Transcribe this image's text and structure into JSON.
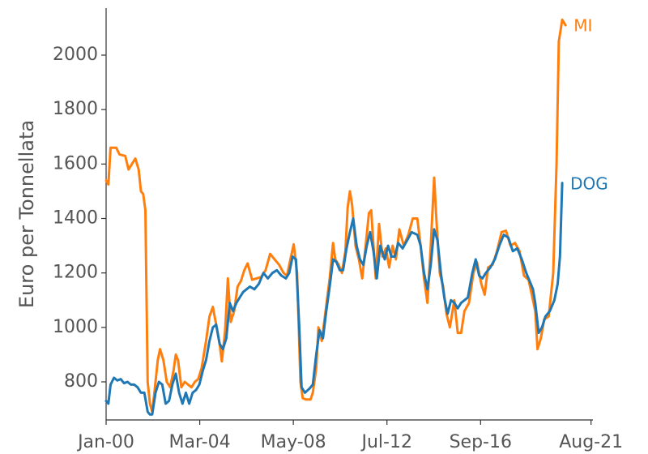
{
  "chart_data": {
    "type": "line",
    "ylabel": "Euro per Tonnellata",
    "xlabel": "",
    "title": "",
    "ylim": [
      670,
      2180
    ],
    "yticks": [
      800,
      1000,
      1200,
      1400,
      1600,
      1800,
      2000
    ],
    "xlim": [
      2000.0,
      2021.667
    ],
    "xticks": [
      {
        "label": "Jan-00",
        "x": 2000.0
      },
      {
        "label": "Mar-04",
        "x": 2004.167
      },
      {
        "label": "May-08",
        "x": 2008.333
      },
      {
        "label": "Jul-12",
        "x": 2012.5
      },
      {
        "label": "Sep-16",
        "x": 2016.667
      },
      {
        "label": "Aug-21",
        "x": 2021.583
      }
    ],
    "grid": false,
    "series": [
      {
        "name": "MI",
        "color": "#ff7f0e",
        "points": [
          [
            2000.0,
            1540
          ],
          [
            2000.1,
            1525
          ],
          [
            2000.2,
            1660
          ],
          [
            2000.45,
            1660
          ],
          [
            2000.6,
            1635
          ],
          [
            2000.85,
            1630
          ],
          [
            2001.0,
            1580
          ],
          [
            2001.15,
            1600
          ],
          [
            2001.3,
            1620
          ],
          [
            2001.45,
            1580
          ],
          [
            2001.55,
            1500
          ],
          [
            2001.65,
            1490
          ],
          [
            2001.75,
            1430
          ],
          [
            2001.85,
            800
          ],
          [
            2001.95,
            720
          ],
          [
            2002.05,
            690
          ],
          [
            2002.15,
            760
          ],
          [
            2002.3,
            880
          ],
          [
            2002.4,
            920
          ],
          [
            2002.55,
            880
          ],
          [
            2002.7,
            800
          ],
          [
            2002.85,
            780
          ],
          [
            2003.0,
            840
          ],
          [
            2003.1,
            900
          ],
          [
            2003.2,
            880
          ],
          [
            2003.35,
            780
          ],
          [
            2003.5,
            800
          ],
          [
            2003.65,
            790
          ],
          [
            2003.8,
            780
          ],
          [
            2003.95,
            800
          ],
          [
            2004.1,
            810
          ],
          [
            2004.25,
            850
          ],
          [
            2004.45,
            950
          ],
          [
            2004.6,
            1040
          ],
          [
            2004.75,
            1075
          ],
          [
            2004.9,
            1010
          ],
          [
            2005.05,
            940
          ],
          [
            2005.15,
            875
          ],
          [
            2005.3,
            990
          ],
          [
            2005.42,
            1180
          ],
          [
            2005.55,
            1020
          ],
          [
            2005.7,
            1060
          ],
          [
            2005.85,
            1150
          ],
          [
            2006.0,
            1170
          ],
          [
            2006.15,
            1210
          ],
          [
            2006.3,
            1235
          ],
          [
            2006.5,
            1175
          ],
          [
            2006.7,
            1180
          ],
          [
            2006.9,
            1185
          ],
          [
            2007.1,
            1210
          ],
          [
            2007.3,
            1270
          ],
          [
            2007.5,
            1250
          ],
          [
            2007.7,
            1230
          ],
          [
            2007.9,
            1200
          ],
          [
            2008.05,
            1190
          ],
          [
            2008.2,
            1250
          ],
          [
            2008.35,
            1305
          ],
          [
            2008.5,
            1200
          ],
          [
            2008.65,
            800
          ],
          [
            2008.75,
            740
          ],
          [
            2008.9,
            735
          ],
          [
            2009.1,
            735
          ],
          [
            2009.2,
            760
          ],
          [
            2009.35,
            850
          ],
          [
            2009.45,
            1000
          ],
          [
            2009.6,
            950
          ],
          [
            2009.8,
            1080
          ],
          [
            2009.95,
            1180
          ],
          [
            2010.1,
            1310
          ],
          [
            2010.2,
            1250
          ],
          [
            2010.35,
            1230
          ],
          [
            2010.5,
            1200
          ],
          [
            2010.65,
            1280
          ],
          [
            2010.75,
            1440
          ],
          [
            2010.85,
            1500
          ],
          [
            2010.95,
            1450
          ],
          [
            2011.1,
            1300
          ],
          [
            2011.25,
            1250
          ],
          [
            2011.4,
            1180
          ],
          [
            2011.55,
            1300
          ],
          [
            2011.7,
            1420
          ],
          [
            2011.8,
            1430
          ],
          [
            2011.9,
            1300
          ],
          [
            2012.0,
            1180
          ],
          [
            2012.15,
            1380
          ],
          [
            2012.3,
            1260
          ],
          [
            2012.45,
            1290
          ],
          [
            2012.6,
            1220
          ],
          [
            2012.75,
            1300
          ],
          [
            2012.9,
            1250
          ],
          [
            2013.05,
            1360
          ],
          [
            2013.25,
            1300
          ],
          [
            2013.45,
            1340
          ],
          [
            2013.65,
            1400
          ],
          [
            2013.85,
            1400
          ],
          [
            2014.0,
            1300
          ],
          [
            2014.15,
            1180
          ],
          [
            2014.3,
            1090
          ],
          [
            2014.45,
            1300
          ],
          [
            2014.6,
            1550
          ],
          [
            2014.7,
            1400
          ],
          [
            2014.85,
            1200
          ],
          [
            2015.0,
            1150
          ],
          [
            2015.15,
            1050
          ],
          [
            2015.3,
            1000
          ],
          [
            2015.5,
            1100
          ],
          [
            2015.65,
            980
          ],
          [
            2015.8,
            980
          ],
          [
            2015.95,
            1060
          ],
          [
            2016.15,
            1090
          ],
          [
            2016.35,
            1200
          ],
          [
            2016.5,
            1240
          ],
          [
            2016.7,
            1160
          ],
          [
            2016.85,
            1120
          ],
          [
            2017.0,
            1220
          ],
          [
            2017.2,
            1230
          ],
          [
            2017.4,
            1280
          ],
          [
            2017.6,
            1350
          ],
          [
            2017.8,
            1355
          ],
          [
            2018.0,
            1300
          ],
          [
            2018.2,
            1310
          ],
          [
            2018.4,
            1280
          ],
          [
            2018.6,
            1190
          ],
          [
            2018.8,
            1175
          ],
          [
            2018.95,
            1120
          ],
          [
            2019.1,
            1060
          ],
          [
            2019.2,
            920
          ],
          [
            2019.35,
            960
          ],
          [
            2019.5,
            1030
          ],
          [
            2019.7,
            1040
          ],
          [
            2019.9,
            1200
          ],
          [
            2020.05,
            1600
          ],
          [
            2020.15,
            2050
          ],
          [
            2020.3,
            2130
          ],
          [
            2020.45,
            2110
          ]
        ]
      },
      {
        "name": "DOG",
        "color": "#1f77b4",
        "points": [
          [
            2000.0,
            730
          ],
          [
            2000.1,
            720
          ],
          [
            2000.2,
            790
          ],
          [
            2000.35,
            815
          ],
          [
            2000.5,
            805
          ],
          [
            2000.65,
            810
          ],
          [
            2000.8,
            795
          ],
          [
            2000.95,
            800
          ],
          [
            2001.1,
            790
          ],
          [
            2001.25,
            790
          ],
          [
            2001.4,
            780
          ],
          [
            2001.55,
            760
          ],
          [
            2001.7,
            760
          ],
          [
            2001.85,
            690
          ],
          [
            2001.95,
            680
          ],
          [
            2002.05,
            680
          ],
          [
            2002.2,
            760
          ],
          [
            2002.35,
            800
          ],
          [
            2002.5,
            790
          ],
          [
            2002.65,
            720
          ],
          [
            2002.8,
            730
          ],
          [
            2002.95,
            790
          ],
          [
            2003.1,
            830
          ],
          [
            2003.25,
            760
          ],
          [
            2003.4,
            720
          ],
          [
            2003.55,
            760
          ],
          [
            2003.7,
            720
          ],
          [
            2003.85,
            760
          ],
          [
            2004.0,
            770
          ],
          [
            2004.15,
            790
          ],
          [
            2004.3,
            840
          ],
          [
            2004.45,
            880
          ],
          [
            2004.6,
            950
          ],
          [
            2004.75,
            1000
          ],
          [
            2004.9,
            1010
          ],
          [
            2005.05,
            940
          ],
          [
            2005.2,
            920
          ],
          [
            2005.35,
            960
          ],
          [
            2005.5,
            1090
          ],
          [
            2005.65,
            1060
          ],
          [
            2005.8,
            1090
          ],
          [
            2005.95,
            1110
          ],
          [
            2006.1,
            1130
          ],
          [
            2006.25,
            1140
          ],
          [
            2006.4,
            1150
          ],
          [
            2006.6,
            1140
          ],
          [
            2006.8,
            1160
          ],
          [
            2007.0,
            1200
          ],
          [
            2007.2,
            1180
          ],
          [
            2007.4,
            1200
          ],
          [
            2007.6,
            1210
          ],
          [
            2007.8,
            1190
          ],
          [
            2008.0,
            1180
          ],
          [
            2008.15,
            1200
          ],
          [
            2008.3,
            1260
          ],
          [
            2008.45,
            1250
          ],
          [
            2008.6,
            1000
          ],
          [
            2008.7,
            780
          ],
          [
            2008.85,
            760
          ],
          [
            2009.05,
            775
          ],
          [
            2009.2,
            790
          ],
          [
            2009.35,
            900
          ],
          [
            2009.5,
            990
          ],
          [
            2009.65,
            960
          ],
          [
            2009.8,
            1060
          ],
          [
            2009.95,
            1150
          ],
          [
            2010.1,
            1250
          ],
          [
            2010.25,
            1240
          ],
          [
            2010.4,
            1210
          ],
          [
            2010.55,
            1210
          ],
          [
            2010.7,
            1290
          ],
          [
            2010.85,
            1350
          ],
          [
            2011.0,
            1400
          ],
          [
            2011.15,
            1300
          ],
          [
            2011.3,
            1250
          ],
          [
            2011.45,
            1230
          ],
          [
            2011.6,
            1300
          ],
          [
            2011.75,
            1350
          ],
          [
            2011.9,
            1280
          ],
          [
            2012.05,
            1180
          ],
          [
            2012.2,
            1300
          ],
          [
            2012.4,
            1250
          ],
          [
            2012.55,
            1300
          ],
          [
            2012.7,
            1260
          ],
          [
            2012.85,
            1260
          ],
          [
            2013.0,
            1310
          ],
          [
            2013.2,
            1290
          ],
          [
            2013.4,
            1320
          ],
          [
            2013.6,
            1350
          ],
          [
            2013.85,
            1340
          ],
          [
            2014.0,
            1300
          ],
          [
            2014.15,
            1200
          ],
          [
            2014.3,
            1140
          ],
          [
            2014.45,
            1230
          ],
          [
            2014.6,
            1360
          ],
          [
            2014.75,
            1320
          ],
          [
            2014.9,
            1200
          ],
          [
            2015.05,
            1110
          ],
          [
            2015.2,
            1050
          ],
          [
            2015.35,
            1100
          ],
          [
            2015.5,
            1090
          ],
          [
            2015.65,
            1070
          ],
          [
            2015.8,
            1090
          ],
          [
            2015.95,
            1100
          ],
          [
            2016.1,
            1110
          ],
          [
            2016.3,
            1200
          ],
          [
            2016.45,
            1250
          ],
          [
            2016.6,
            1190
          ],
          [
            2016.75,
            1180
          ],
          [
            2016.9,
            1200
          ],
          [
            2017.1,
            1220
          ],
          [
            2017.3,
            1250
          ],
          [
            2017.5,
            1300
          ],
          [
            2017.7,
            1340
          ],
          [
            2017.9,
            1330
          ],
          [
            2018.1,
            1280
          ],
          [
            2018.3,
            1290
          ],
          [
            2018.5,
            1250
          ],
          [
            2018.7,
            1200
          ],
          [
            2018.85,
            1170
          ],
          [
            2019.0,
            1140
          ],
          [
            2019.1,
            1090
          ],
          [
            2019.25,
            980
          ],
          [
            2019.4,
            1000
          ],
          [
            2019.55,
            1040
          ],
          [
            2019.75,
            1060
          ],
          [
            2019.95,
            1100
          ],
          [
            2020.1,
            1160
          ],
          [
            2020.2,
            1260
          ],
          [
            2020.3,
            1530
          ]
        ]
      }
    ]
  }
}
